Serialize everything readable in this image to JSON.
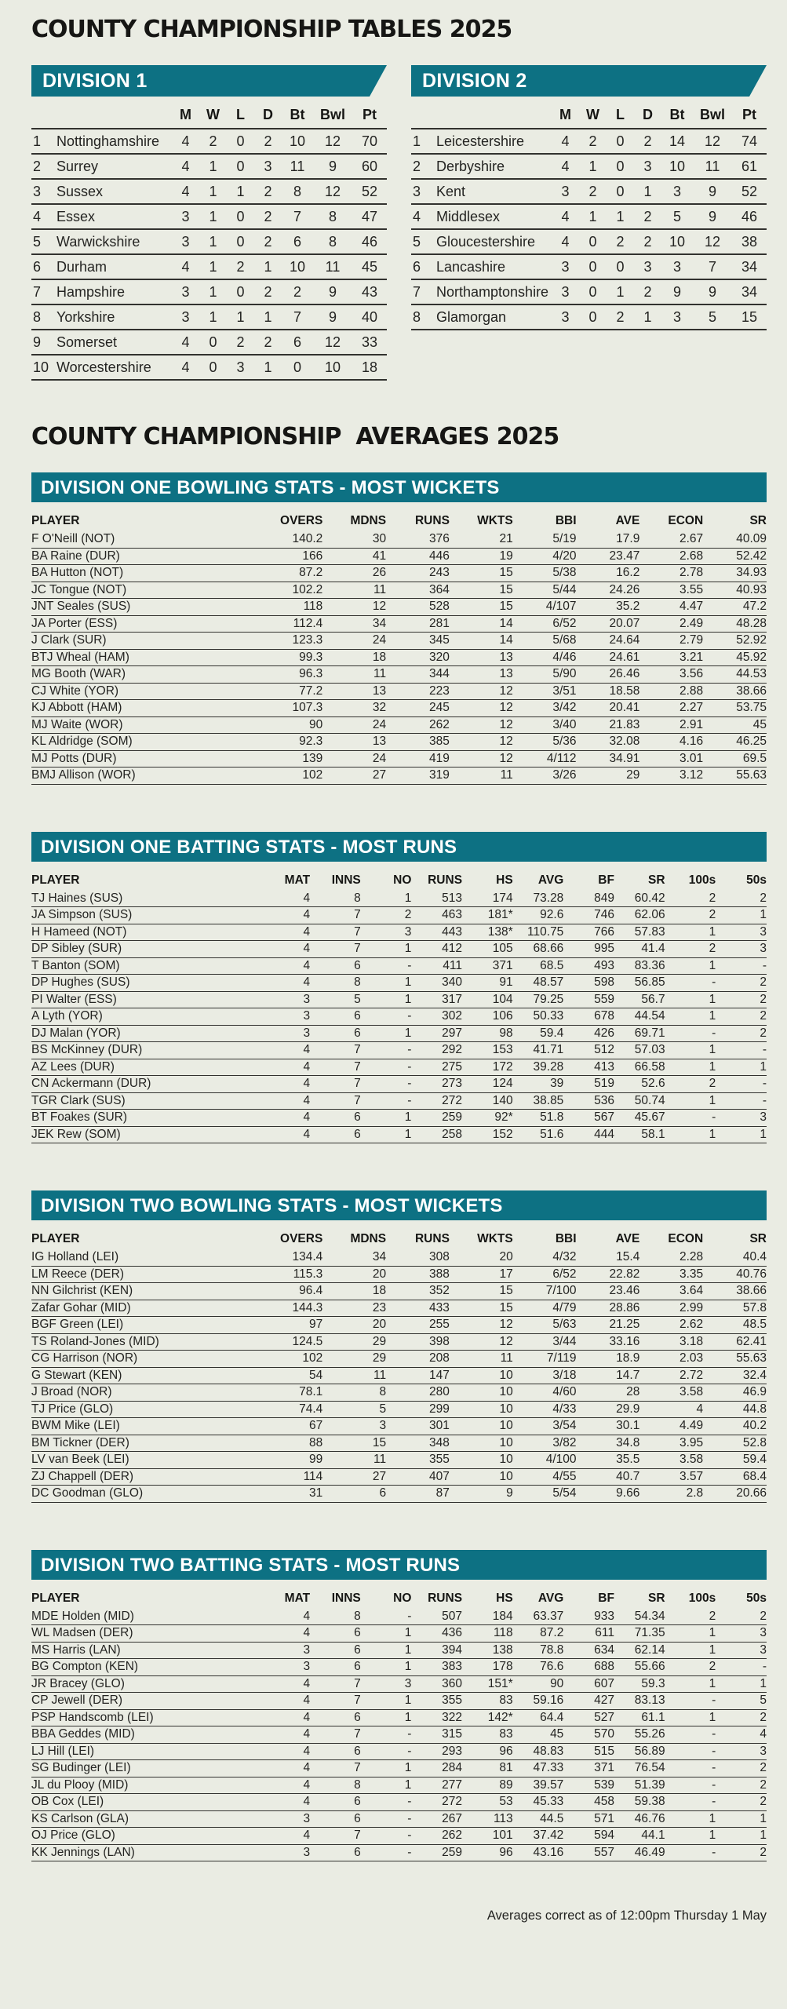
{
  "page": {
    "title_tables": "COUNTY CHAMPIONSHIP TABLES 2025",
    "title_averages": "COUNTY CHAMPIONSHIP  AVERAGES 2025",
    "footer_note": "Averages correct as of 12:00pm Thursday 1 May",
    "colors": {
      "teal": "#0d7183",
      "background": "#eaece3",
      "rule": "#32322f"
    }
  },
  "standings": {
    "columns": [
      "M",
      "W",
      "L",
      "D",
      "Bt",
      "Bwl",
      "Pt"
    ],
    "divisions": [
      {
        "label": "DIVISION 1",
        "rows": [
          {
            "pos": "1",
            "team": "Nottinghamshire",
            "vals": [
              "4",
              "2",
              "0",
              "2",
              "10",
              "12",
              "70"
            ]
          },
          {
            "pos": "2",
            "team": "Surrey",
            "vals": [
              "4",
              "1",
              "0",
              "3",
              "11",
              "9",
              "60"
            ]
          },
          {
            "pos": "3",
            "team": "Sussex",
            "vals": [
              "4",
              "1",
              "1",
              "2",
              "8",
              "12",
              "52"
            ]
          },
          {
            "pos": "4",
            "team": "Essex",
            "vals": [
              "3",
              "1",
              "0",
              "2",
              "7",
              "8",
              "47"
            ]
          },
          {
            "pos": "5",
            "team": "Warwickshire",
            "vals": [
              "3",
              "1",
              "0",
              "2",
              "6",
              "8",
              "46"
            ]
          },
          {
            "pos": "6",
            "team": "Durham",
            "vals": [
              "4",
              "1",
              "2",
              "1",
              "10",
              "11",
              "45"
            ]
          },
          {
            "pos": "7",
            "team": "Hampshire",
            "vals": [
              "3",
              "1",
              "0",
              "2",
              "2",
              "9",
              "43"
            ]
          },
          {
            "pos": "8",
            "team": "Yorkshire",
            "vals": [
              "3",
              "1",
              "1",
              "1",
              "7",
              "9",
              "40"
            ]
          },
          {
            "pos": "9",
            "team": "Somerset",
            "vals": [
              "4",
              "0",
              "2",
              "2",
              "6",
              "12",
              "33"
            ]
          },
          {
            "pos": "10",
            "team": "Worcestershire",
            "vals": [
              "4",
              "0",
              "3",
              "1",
              "0",
              "10",
              "18"
            ]
          }
        ]
      },
      {
        "label": "DIVISION 2",
        "rows": [
          {
            "pos": "1",
            "team": "Leicestershire",
            "vals": [
              "4",
              "2",
              "0",
              "2",
              "14",
              "12",
              "74"
            ]
          },
          {
            "pos": "2",
            "team": "Derbyshire",
            "vals": [
              "4",
              "1",
              "0",
              "3",
              "10",
              "11",
              "61"
            ]
          },
          {
            "pos": "3",
            "team": "Kent",
            "vals": [
              "3",
              "2",
              "0",
              "1",
              "3",
              "9",
              "52"
            ]
          },
          {
            "pos": "4",
            "team": "Middlesex",
            "vals": [
              "4",
              "1",
              "1",
              "2",
              "5",
              "9",
              "46"
            ]
          },
          {
            "pos": "5",
            "team": "Gloucestershire",
            "vals": [
              "4",
              "0",
              "2",
              "2",
              "10",
              "12",
              "38"
            ]
          },
          {
            "pos": "6",
            "team": "Lancashire",
            "vals": [
              "3",
              "0",
              "0",
              "3",
              "3",
              "7",
              "34"
            ]
          },
          {
            "pos": "7",
            "team": "Northamptonshire",
            "vals": [
              "3",
              "0",
              "1",
              "2",
              "9",
              "9",
              "34"
            ]
          },
          {
            "pos": "8",
            "team": "Glamorgan",
            "vals": [
              "3",
              "0",
              "2",
              "1",
              "3",
              "5",
              "15"
            ]
          }
        ]
      }
    ]
  },
  "stats_sections": [
    {
      "label": "DIVISION ONE BOWLING STATS - MOST WICKETS",
      "columns": [
        "PLAYER",
        "OVERS",
        "MDNS",
        "RUNS",
        "WKTS",
        "BBI",
        "AVE",
        "ECON",
        "SR"
      ],
      "rows": [
        [
          "F O'Neill (NOT)",
          "140.2",
          "30",
          "376",
          "21",
          "5/19",
          "17.9",
          "2.67",
          "40.09"
        ],
        [
          "BA Raine (DUR)",
          "166",
          "41",
          "446",
          "19",
          "4/20",
          "23.47",
          "2.68",
          "52.42"
        ],
        [
          "BA Hutton (NOT)",
          "87.2",
          "26",
          "243",
          "15",
          "5/38",
          "16.2",
          "2.78",
          "34.93"
        ],
        [
          "JC Tongue (NOT)",
          "102.2",
          "11",
          "364",
          "15",
          "5/44",
          "24.26",
          "3.55",
          "40.93"
        ],
        [
          "JNT Seales (SUS)",
          "118",
          "12",
          "528",
          "15",
          "4/107",
          "35.2",
          "4.47",
          "47.2"
        ],
        [
          "JA Porter (ESS)",
          "112.4",
          "34",
          "281",
          "14",
          "6/52",
          "20.07",
          "2.49",
          "48.28"
        ],
        [
          "J Clark (SUR)",
          "123.3",
          "24",
          "345",
          "14",
          "5/68",
          "24.64",
          "2.79",
          "52.92"
        ],
        [
          "BTJ Wheal (HAM)",
          "99.3",
          "18",
          "320",
          "13",
          "4/46",
          "24.61",
          "3.21",
          "45.92"
        ],
        [
          "MG Booth (WAR)",
          "96.3",
          "11",
          "344",
          "13",
          "5/90",
          "26.46",
          "3.56",
          "44.53"
        ],
        [
          "CJ White (YOR)",
          "77.2",
          "13",
          "223",
          "12",
          "3/51",
          "18.58",
          "2.88",
          "38.66"
        ],
        [
          "KJ Abbott (HAM)",
          "107.3",
          "32",
          "245",
          "12",
          "3/42",
          "20.41",
          "2.27",
          "53.75"
        ],
        [
          "MJ Waite (WOR)",
          "90",
          "24",
          "262",
          "12",
          "3/40",
          "21.83",
          "2.91",
          "45"
        ],
        [
          "KL Aldridge (SOM)",
          "92.3",
          "13",
          "385",
          "12",
          "5/36",
          "32.08",
          "4.16",
          "46.25"
        ],
        [
          "MJ Potts (DUR)",
          "139",
          "24",
          "419",
          "12",
          "4/112",
          "34.91",
          "3.01",
          "69.5"
        ],
        [
          "BMJ Allison (WOR)",
          "102",
          "27",
          "319",
          "11",
          "3/26",
          "29",
          "3.12",
          "55.63"
        ]
      ]
    },
    {
      "label": "DIVISION ONE BATTING STATS - MOST RUNS",
      "columns": [
        "PLAYER",
        "MAT",
        "INNS",
        "NO",
        "RUNS",
        "HS",
        "AVG",
        "BF",
        "SR",
        "100s",
        "50s"
      ],
      "rows": [
        [
          "TJ Haines (SUS)",
          "4",
          "8",
          "1",
          "513",
          "174",
          "73.28",
          "849",
          "60.42",
          "2",
          "2"
        ],
        [
          "JA Simpson (SUS)",
          "4",
          "7",
          "2",
          "463",
          "181*",
          "92.6",
          "746",
          "62.06",
          "2",
          "1"
        ],
        [
          "H Hameed (NOT)",
          "4",
          "7",
          "3",
          "443",
          "138*",
          "110.75",
          "766",
          "57.83",
          "1",
          "3"
        ],
        [
          "DP Sibley (SUR)",
          "4",
          "7",
          "1",
          "412",
          "105",
          "68.66",
          "995",
          "41.4",
          "2",
          "3"
        ],
        [
          "T Banton (SOM)",
          "4",
          "6",
          "-",
          "411",
          "371",
          "68.5",
          "493",
          "83.36",
          "1",
          "-"
        ],
        [
          "DP Hughes (SUS)",
          "4",
          "8",
          "1",
          "340",
          "91",
          "48.57",
          "598",
          "56.85",
          "-",
          "2"
        ],
        [
          "PI Walter (ESS)",
          "3",
          "5",
          "1",
          "317",
          "104",
          "79.25",
          "559",
          "56.7",
          "1",
          "2"
        ],
        [
          "A Lyth (YOR)",
          "3",
          "6",
          "-",
          "302",
          "106",
          "50.33",
          "678",
          "44.54",
          "1",
          "2"
        ],
        [
          "DJ Malan (YOR)",
          "3",
          "6",
          "1",
          "297",
          "98",
          "59.4",
          "426",
          "69.71",
          "-",
          "2"
        ],
        [
          "BS McKinney (DUR)",
          "4",
          "7",
          "-",
          "292",
          "153",
          "41.71",
          "512",
          "57.03",
          "1",
          "-"
        ],
        [
          "AZ Lees (DUR)",
          "4",
          "7",
          "-",
          "275",
          "172",
          "39.28",
          "413",
          "66.58",
          "1",
          "1"
        ],
        [
          "CN Ackermann (DUR)",
          "4",
          "7",
          "-",
          "273",
          "124",
          "39",
          "519",
          "52.6",
          "2",
          "-"
        ],
        [
          "TGR Clark (SUS)",
          "4",
          "7",
          "-",
          "272",
          "140",
          "38.85",
          "536",
          "50.74",
          "1",
          "-"
        ],
        [
          "BT Foakes (SUR)",
          "4",
          "6",
          "1",
          "259",
          "92*",
          "51.8",
          "567",
          "45.67",
          "-",
          "3"
        ],
        [
          "JEK Rew (SOM)",
          "4",
          "6",
          "1",
          "258",
          "152",
          "51.6",
          "444",
          "58.1",
          "1",
          "1"
        ]
      ]
    },
    {
      "label": "DIVISION TWO BOWLING STATS - MOST WICKETS",
      "columns": [
        "PLAYER",
        "OVERS",
        "MDNS",
        "RUNS",
        "WKTS",
        "BBI",
        "AVE",
        "ECON",
        "SR"
      ],
      "rows": [
        [
          "IG Holland (LEI)",
          "134.4",
          "34",
          "308",
          "20",
          "4/32",
          "15.4",
          "2.28",
          "40.4"
        ],
        [
          "LM Reece (DER)",
          "115.3",
          "20",
          "388",
          "17",
          "6/52",
          "22.82",
          "3.35",
          "40.76"
        ],
        [
          "NN Gilchrist (KEN)",
          "96.4",
          "18",
          "352",
          "15",
          "7/100",
          "23.46",
          "3.64",
          "38.66"
        ],
        [
          "Zafar Gohar (MID)",
          "144.3",
          "23",
          "433",
          "15",
          "4/79",
          "28.86",
          "2.99",
          "57.8"
        ],
        [
          "BGF Green (LEI)",
          "97",
          "20",
          "255",
          "12",
          "5/63",
          "21.25",
          "2.62",
          "48.5"
        ],
        [
          "TS Roland-Jones (MID)",
          "124.5",
          "29",
          "398",
          "12",
          "3/44",
          "33.16",
          "3.18",
          "62.41"
        ],
        [
          "CG Harrison (NOR)",
          "102",
          "29",
          "208",
          "11",
          "7/119",
          "18.9",
          "2.03",
          "55.63"
        ],
        [
          "G Stewart (KEN)",
          "54",
          "11",
          "147",
          "10",
          "3/18",
          "14.7",
          "2.72",
          "32.4"
        ],
        [
          "J Broad (NOR)",
          "78.1",
          "8",
          "280",
          "10",
          "4/60",
          "28",
          "3.58",
          "46.9"
        ],
        [
          "TJ Price (GLO)",
          "74.4",
          "5",
          "299",
          "10",
          "4/33",
          "29.9",
          "4",
          "44.8"
        ],
        [
          "BWM Mike (LEI)",
          "67",
          "3",
          "301",
          "10",
          "3/54",
          "30.1",
          "4.49",
          "40.2"
        ],
        [
          "BM Tickner (DER)",
          "88",
          "15",
          "348",
          "10",
          "3/82",
          "34.8",
          "3.95",
          "52.8"
        ],
        [
          "LV van Beek (LEI)",
          "99",
          "11",
          "355",
          "10",
          "4/100",
          "35.5",
          "3.58",
          "59.4"
        ],
        [
          "ZJ Chappell (DER)",
          "114",
          "27",
          "407",
          "10",
          "4/55",
          "40.7",
          "3.57",
          "68.4"
        ],
        [
          "DC Goodman (GLO)",
          "31",
          "6",
          "87",
          "9",
          "5/54",
          "9.66",
          "2.8",
          "20.66"
        ]
      ]
    },
    {
      "label": "DIVISION TWO BATTING STATS - MOST RUNS",
      "columns": [
        "PLAYER",
        "MAT",
        "INNS",
        "NO",
        "RUNS",
        "HS",
        "AVG",
        "BF",
        "SR",
        "100s",
        "50s"
      ],
      "rows": [
        [
          "MDE Holden (MID)",
          "4",
          "8",
          "-",
          "507",
          "184",
          "63.37",
          "933",
          "54.34",
          "2",
          "2"
        ],
        [
          "WL Madsen (DER)",
          "4",
          "6",
          "1",
          "436",
          "118",
          "87.2",
          "611",
          "71.35",
          "1",
          "3"
        ],
        [
          "MS Harris (LAN)",
          "3",
          "6",
          "1",
          "394",
          "138",
          "78.8",
          "634",
          "62.14",
          "1",
          "3"
        ],
        [
          "BG Compton (KEN)",
          "3",
          "6",
          "1",
          "383",
          "178",
          "76.6",
          "688",
          "55.66",
          "2",
          "-"
        ],
        [
          "JR Bracey (GLO)",
          "4",
          "7",
          "3",
          "360",
          "151*",
          "90",
          "607",
          "59.3",
          "1",
          "1"
        ],
        [
          "CP Jewell (DER)",
          "4",
          "7",
          "1",
          "355",
          "83",
          "59.16",
          "427",
          "83.13",
          "-",
          "5"
        ],
        [
          "PSP Handscomb (LEI)",
          "4",
          "6",
          "1",
          "322",
          "142*",
          "64.4",
          "527",
          "61.1",
          "1",
          "2"
        ],
        [
          "BBA Geddes (MID)",
          "4",
          "7",
          "-",
          "315",
          "83",
          "45",
          "570",
          "55.26",
          "-",
          "4"
        ],
        [
          "LJ Hill (LEI)",
          "4",
          "6",
          "-",
          "293",
          "96",
          "48.83",
          "515",
          "56.89",
          "-",
          "3"
        ],
        [
          "SG Budinger (LEI)",
          "4",
          "7",
          "1",
          "284",
          "81",
          "47.33",
          "371",
          "76.54",
          "-",
          "2"
        ],
        [
          "JL du Plooy (MID)",
          "4",
          "8",
          "1",
          "277",
          "89",
          "39.57",
          "539",
          "51.39",
          "-",
          "2"
        ],
        [
          "OB Cox (LEI)",
          "4",
          "6",
          "-",
          "272",
          "53",
          "45.33",
          "458",
          "59.38",
          "-",
          "2"
        ],
        [
          "KS Carlson (GLA)",
          "3",
          "6",
          "-",
          "267",
          "113",
          "44.5",
          "571",
          "46.76",
          "1",
          "1"
        ],
        [
          "OJ Price (GLO)",
          "4",
          "7",
          "-",
          "262",
          "101",
          "37.42",
          "594",
          "44.1",
          "1",
          "1"
        ],
        [
          "KK Jennings (LAN)",
          "3",
          "6",
          "-",
          "259",
          "96",
          "43.16",
          "557",
          "46.49",
          "-",
          "2"
        ]
      ]
    }
  ]
}
